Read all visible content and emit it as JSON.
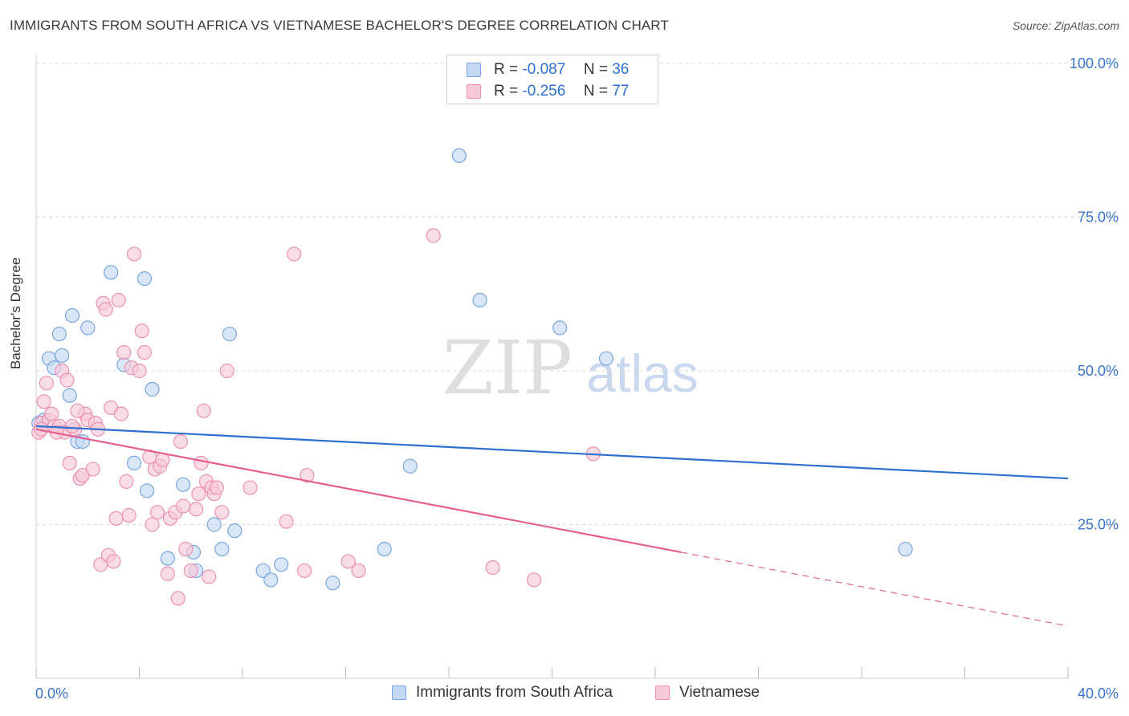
{
  "header": {
    "title": "IMMIGRANTS FROM SOUTH AFRICA VS VIETNAMESE BACHELOR'S DEGREE CORRELATION CHART",
    "source": "Source: ZipAtlas.com"
  },
  "watermark": {
    "zip": "ZIP",
    "atlas": "atlas"
  },
  "colors": {
    "blue_fill": "#c4d8f4",
    "blue_stroke": "#7aa6e0",
    "blue_line": "#2e6fcf",
    "pink_fill": "#f8c9d8",
    "pink_stroke": "#ec92b2",
    "pink_line": "#e35f8f",
    "axis_text": "#3a74c9"
  },
  "stats_legend": {
    "rows": [
      {
        "r_label": "R =",
        "r_value": "-0.087",
        "n_label": "N =",
        "n_value": "36",
        "color": "blue"
      },
      {
        "r_label": "R =",
        "r_value": "-0.256",
        "n_label": "N =",
        "n_value": "77",
        "color": "pink"
      }
    ]
  },
  "chart_data": {
    "type": "scatter",
    "title": "IMMIGRANTS FROM SOUTH AFRICA VS VIETNAMESE BACHELOR'S DEGREE CORRELATION CHART",
    "xlabel": "",
    "ylabel": "Bachelor's Degree",
    "xlim": [
      0,
      40
    ],
    "ylim": [
      0,
      100
    ],
    "x_tick_labels": [
      "0.0%",
      "40.0%"
    ],
    "y_tick_labels": [
      "100.0%",
      "75.0%",
      "50.0%",
      "25.0%"
    ],
    "y_ticks": [
      100,
      75,
      50,
      25
    ],
    "grid": true,
    "legend_position": "bottom",
    "series": [
      {
        "name": "Immigrants from South Africa",
        "color": "blue",
        "points": [
          [
            0.1,
            41.5
          ],
          [
            0.3,
            42
          ],
          [
            0.5,
            52
          ],
          [
            0.7,
            50.5
          ],
          [
            0.9,
            56
          ],
          [
            1.0,
            52.5
          ],
          [
            1.3,
            46
          ],
          [
            1.4,
            59
          ],
          [
            1.6,
            38.5
          ],
          [
            1.8,
            38.5
          ],
          [
            2.0,
            57
          ],
          [
            2.9,
            66
          ],
          [
            3.4,
            51
          ],
          [
            3.8,
            35
          ],
          [
            4.2,
            65
          ],
          [
            4.3,
            30.5
          ],
          [
            4.5,
            47
          ],
          [
            5.1,
            19.5
          ],
          [
            5.7,
            31.5
          ],
          [
            6.1,
            20.5
          ],
          [
            6.2,
            17.5
          ],
          [
            6.9,
            25
          ],
          [
            7.2,
            21
          ],
          [
            7.5,
            56
          ],
          [
            7.7,
            24
          ],
          [
            8.8,
            17.5
          ],
          [
            9.1,
            16
          ],
          [
            9.5,
            18.5
          ],
          [
            11.5,
            15.5
          ],
          [
            13.5,
            21
          ],
          [
            14.5,
            34.5
          ],
          [
            16.4,
            85
          ],
          [
            17.2,
            61.5
          ],
          [
            20.3,
            57
          ],
          [
            22.1,
            52
          ],
          [
            33.7,
            21
          ]
        ]
      },
      {
        "name": "Vietnamese",
        "color": "pink",
        "points": [
          [
            0.1,
            40
          ],
          [
            0.2,
            41.5
          ],
          [
            0.3,
            45
          ],
          [
            0.4,
            48
          ],
          [
            0.5,
            42
          ],
          [
            0.6,
            43
          ],
          [
            0.7,
            41
          ],
          [
            0.9,
            41
          ],
          [
            1.0,
            50
          ],
          [
            1.1,
            40
          ],
          [
            1.2,
            48.5
          ],
          [
            1.3,
            35
          ],
          [
            1.5,
            40.5
          ],
          [
            1.7,
            32.5
          ],
          [
            1.8,
            33
          ],
          [
            1.9,
            43
          ],
          [
            2.0,
            42
          ],
          [
            2.2,
            34
          ],
          [
            2.3,
            41.5
          ],
          [
            2.5,
            18.5
          ],
          [
            2.6,
            61
          ],
          [
            2.7,
            60
          ],
          [
            2.8,
            20
          ],
          [
            2.9,
            44
          ],
          [
            3.0,
            19
          ],
          [
            3.1,
            26
          ],
          [
            3.2,
            61.5
          ],
          [
            3.4,
            53
          ],
          [
            3.5,
            32
          ],
          [
            3.6,
            26.5
          ],
          [
            3.7,
            50.5
          ],
          [
            3.8,
            69
          ],
          [
            4.0,
            50
          ],
          [
            4.1,
            56.5
          ],
          [
            4.2,
            53
          ],
          [
            4.4,
            36
          ],
          [
            4.5,
            25
          ],
          [
            4.6,
            34
          ],
          [
            4.7,
            27
          ],
          [
            4.8,
            34.5
          ],
          [
            4.9,
            35.5
          ],
          [
            5.1,
            17
          ],
          [
            5.2,
            26
          ],
          [
            5.4,
            27
          ],
          [
            5.5,
            13
          ],
          [
            5.6,
            38.5
          ],
          [
            5.7,
            28
          ],
          [
            5.8,
            21
          ],
          [
            6.0,
            17.5
          ],
          [
            6.2,
            27.5
          ],
          [
            6.4,
            35
          ],
          [
            6.5,
            43.5
          ],
          [
            6.6,
            32
          ],
          [
            6.7,
            16.5
          ],
          [
            6.8,
            31
          ],
          [
            6.9,
            30
          ],
          [
            7.0,
            31
          ],
          [
            7.2,
            27
          ],
          [
            7.4,
            50
          ],
          [
            8.3,
            31
          ],
          [
            9.7,
            25.5
          ],
          [
            10.0,
            69
          ],
          [
            10.4,
            17.5
          ],
          [
            10.5,
            33
          ],
          [
            12.1,
            19
          ],
          [
            12.5,
            17.5
          ],
          [
            15.4,
            72
          ],
          [
            17.7,
            18
          ],
          [
            19.3,
            16
          ],
          [
            21.6,
            36.5
          ],
          [
            0.2,
            40.5
          ],
          [
            1.6,
            43.5
          ],
          [
            2.4,
            40.5
          ],
          [
            3.3,
            43
          ],
          [
            0.8,
            40
          ],
          [
            1.4,
            41
          ],
          [
            6.3,
            30
          ]
        ]
      }
    ],
    "trendlines": [
      {
        "series": "Immigrants from South Africa",
        "x": [
          0,
          40
        ],
        "y": [
          41,
          32.5
        ],
        "style": "solid"
      },
      {
        "series": "Vietnamese",
        "x": [
          0,
          25
        ],
        "y": [
          40.5,
          20.5
        ],
        "style": "solid"
      },
      {
        "series": "Vietnamese",
        "x": [
          25,
          40
        ],
        "y": [
          20.5,
          8.5
        ],
        "style": "dashed"
      }
    ]
  },
  "bottom_legend": {
    "items": [
      {
        "label": "Immigrants from South Africa",
        "color": "blue"
      },
      {
        "label": "Vietnamese",
        "color": "pink"
      }
    ]
  }
}
